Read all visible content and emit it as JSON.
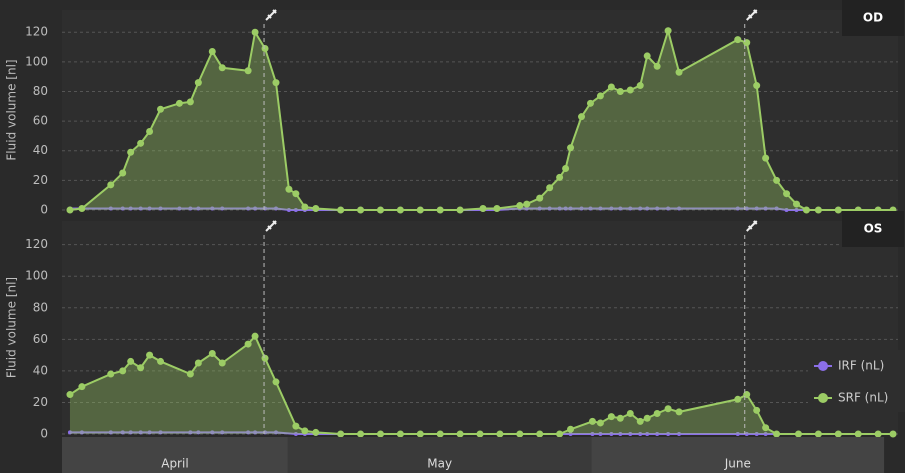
{
  "chart_data": [
    {
      "type": "line",
      "title": "OD",
      "y_label": "Fluid volume [nl]",
      "xlim": [
        0,
        84
      ],
      "ylim": [
        0,
        135
      ],
      "yticks": [
        0,
        20,
        40,
        60,
        80,
        100,
        120
      ],
      "grid": true,
      "injections": [
        20.3,
        68.6
      ],
      "x": [
        0.8,
        2.0,
        4.9,
        6.1,
        6.9,
        7.9,
        8.8,
        9.9,
        11.8,
        12.9,
        13.7,
        15.1,
        16.1,
        18.7,
        19.4,
        20.4,
        21.5,
        22.8,
        23.5,
        24.4,
        25.5,
        28,
        30,
        32,
        34,
        36,
        38,
        40,
        42.3,
        43.7,
        46.0,
        46.7,
        48.0,
        49.0,
        50.0,
        50.6,
        51.1,
        52.2,
        53.1,
        54.1,
        55.2,
        56.1,
        57.1,
        58.1,
        58.8,
        59.8,
        60.9,
        62.0,
        67.9,
        68.8,
        69.8,
        70.7,
        71.8,
        72.8,
        73.8,
        74.8,
        76,
        78,
        80,
        82,
        83.5
      ],
      "series": [
        {
          "name": "IRF (nL)",
          "color": "#8b6fe8",
          "values": [
            1,
            1,
            1,
            1,
            1,
            1,
            1,
            1,
            1,
            1,
            1,
            1,
            1,
            1,
            1,
            1,
            1,
            0,
            0,
            0,
            0,
            0,
            0,
            0,
            0,
            0,
            0,
            0,
            0,
            0,
            1,
            1,
            1,
            1,
            1,
            1,
            1,
            1,
            1,
            1,
            1,
            1,
            1,
            1,
            1,
            1,
            1,
            1,
            1,
            1,
            1,
            1,
            1,
            0,
            0,
            0,
            0,
            0,
            0,
            0,
            0
          ]
        },
        {
          "name": "SRF (nL)",
          "color": "#9ccc65",
          "values": [
            0,
            1,
            17,
            25,
            39,
            45,
            53,
            68,
            72,
            73,
            86,
            107,
            96,
            94,
            120,
            109,
            86,
            14,
            11,
            2,
            1,
            0,
            0,
            0,
            0,
            0,
            0,
            0,
            1,
            1,
            3,
            4,
            8,
            15,
            22,
            28,
            42,
            63,
            72,
            77,
            83,
            80,
            81,
            84,
            104,
            97,
            121,
            93,
            115,
            113,
            84,
            35,
            20,
            11,
            4,
            0,
            0,
            0,
            0,
            0,
            0
          ]
        }
      ]
    },
    {
      "type": "line",
      "title": "OS",
      "y_label": "Fluid volume [nl]",
      "xlim": [
        0,
        84
      ],
      "ylim": [
        0,
        135
      ],
      "yticks": [
        0,
        20,
        40,
        60,
        80,
        100,
        120
      ],
      "grid": true,
      "injections": [
        20.3,
        68.6
      ],
      "legend": "right",
      "month_bands": [
        {
          "label": "April",
          "range": [
            0,
            22.7
          ]
        },
        {
          "label": "May",
          "range": [
            22.7,
            53.2
          ]
        },
        {
          "label": "June",
          "range": [
            53.2,
            82.6
          ]
        }
      ],
      "x": [
        0.8,
        2.0,
        4.9,
        6.1,
        6.9,
        7.9,
        8.8,
        9.9,
        12.9,
        13.7,
        15.1,
        16.1,
        18.7,
        19.4,
        20.4,
        21.5,
        23.5,
        24.4,
        25.5,
        28,
        30,
        32,
        34,
        36,
        38,
        40,
        42,
        44,
        46,
        48,
        50,
        51.1,
        53.3,
        54.1,
        55.2,
        56.1,
        57.1,
        58.1,
        58.8,
        59.8,
        60.9,
        62.0,
        67.9,
        68.8,
        69.8,
        70.7,
        71.8,
        74,
        76,
        78,
        80,
        82,
        83.5
      ],
      "series": [
        {
          "name": "IRF (nL)",
          "color": "#8b6fe8",
          "values": [
            1,
            1,
            1,
            1,
            1,
            1,
            1,
            1,
            1,
            1,
            1,
            1,
            1,
            1,
            1,
            1,
            0,
            0,
            0,
            0,
            0,
            0,
            0,
            0,
            0,
            0,
            0,
            0,
            0,
            0,
            0,
            0,
            0,
            0,
            0,
            0,
            0,
            0,
            0,
            0,
            0,
            0,
            0,
            0,
            0,
            0,
            0,
            0,
            0,
            0,
            0,
            0,
            0
          ]
        },
        {
          "name": "SRF (nL)",
          "color": "#9ccc65",
          "values": [
            25,
            30,
            38,
            40,
            46,
            42,
            50,
            46,
            38,
            45,
            51,
            45,
            57,
            62,
            48,
            33,
            5,
            2,
            1,
            0,
            0,
            0,
            0,
            0,
            0,
            0,
            0,
            0,
            0,
            0,
            0,
            3,
            8,
            7,
            11,
            10,
            13,
            8,
            10,
            13,
            16,
            14,
            22,
            25,
            15,
            4,
            0,
            0,
            0,
            0,
            0,
            0,
            0
          ]
        }
      ]
    }
  ]
}
